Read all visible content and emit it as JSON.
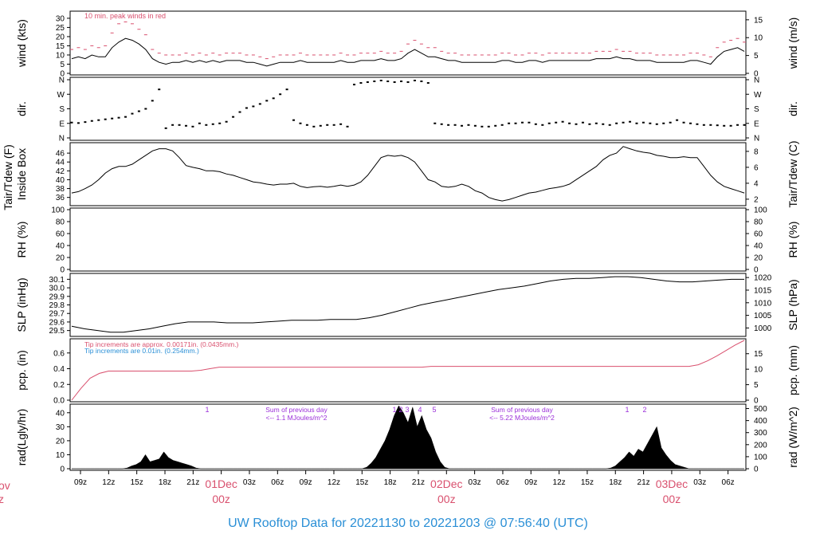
{
  "footer_title": "UW Rooftop Data for 20221130  to  20221203 @ 07:56:40  (UTC)",
  "colors": {
    "frame": "#000000",
    "trace": "#000000",
    "peak": "#d9506e",
    "note_red": "#d9506e",
    "note_blue": "#2a8fd6",
    "note_purple": "#9b30d9",
    "day_label": "#d9506e",
    "title_blue": "#2a8fd6"
  },
  "chart_data": {
    "type": "line",
    "time_axis": {
      "tick_labels": [
        "09z",
        "12z",
        "15z",
        "18z",
        "21z",
        "01Dec",
        "03z",
        "06z",
        "09z",
        "12z",
        "15z",
        "18z",
        "21z",
        "02Dec",
        "03z",
        "06z",
        "09z",
        "12z",
        "15z",
        "18z",
        "21z",
        "03Dec",
        "03z",
        "06z"
      ],
      "day_labels": [
        {
          "date": "01Dec",
          "hour": "00z"
        },
        {
          "date": "02Dec",
          "hour": "00z"
        },
        {
          "date": "03Dec",
          "hour": "00z"
        }
      ],
      "cut_left_labels": [
        "ov",
        "z"
      ]
    },
    "panels": [
      {
        "id": "wind",
        "ylabel_left": "wind (kts)",
        "ylabel_right": "wind (m/s)",
        "ylim": [
          0,
          33
        ],
        "left_ticks": [
          "0",
          "5",
          "10",
          "15",
          "20",
          "25",
          "30"
        ],
        "right_ticks": [
          "0",
          "5",
          "10",
          "15"
        ],
        "note": "10 min. peak winds in red",
        "series": [
          {
            "name": "wind",
            "values": [
              8,
              9,
              8,
              10,
              9,
              9,
              14,
              17,
              19,
              18,
              16,
              13,
              8,
              6,
              5,
              6,
              6,
              7,
              6,
              7,
              6,
              7,
              6,
              7,
              7,
              7,
              6,
              6,
              5,
              4,
              5,
              6,
              6,
              6,
              7,
              6,
              6,
              6,
              6,
              6,
              7,
              6,
              6,
              7,
              7,
              7,
              8,
              7,
              7,
              8,
              11,
              13,
              11,
              9,
              9,
              8,
              7,
              7,
              6,
              6,
              6,
              6,
              6,
              6,
              7,
              7,
              6,
              6,
              7,
              7,
              6,
              7,
              7,
              7,
              7,
              7,
              7,
              7,
              8,
              8,
              8,
              9,
              8,
              8,
              7,
              7,
              7,
              6,
              6,
              6,
              6,
              6,
              7,
              7,
              6,
              5,
              9,
              12,
              13,
              14,
              12
            ]
          },
          {
            "name": "peak",
            "values": [
              13,
              14,
              13,
              15,
              14,
              15,
              22,
              27,
              28,
              27,
              24,
              21,
              13,
              11,
              10,
              10,
              10,
              11,
              10,
              11,
              10,
              11,
              10,
              11,
              11,
              11,
              10,
              10,
              9,
              8,
              9,
              10,
              10,
              10,
              11,
              10,
              10,
              10,
              10,
              10,
              11,
              10,
              10,
              11,
              11,
              11,
              12,
              11,
              11,
              12,
              16,
              18,
              16,
              14,
              14,
              12,
              11,
              11,
              10,
              10,
              10,
              10,
              10,
              10,
              11,
              11,
              10,
              10,
              11,
              11,
              10,
              11,
              11,
              11,
              11,
              11,
              11,
              11,
              12,
              12,
              12,
              13,
              12,
              12,
              11,
              11,
              11,
              10,
              10,
              10,
              10,
              10,
              11,
              11,
              10,
              9,
              14,
              17,
              18,
              19,
              17
            ]
          }
        ]
      },
      {
        "id": "dir",
        "ylabel_left": "dir.",
        "ylabel_right": "dir.",
        "ylim": [
          0,
          360
        ],
        "left_ticks": [
          "N",
          "E",
          "S",
          "W",
          "N"
        ],
        "right_ticks": [
          "N",
          "E",
          "S",
          "W",
          "N"
        ],
        "series": [
          {
            "name": "direction",
            "values": [
              95,
              92,
              98,
              105,
              110,
              115,
              120,
              125,
              130,
              150,
              165,
              180,
              230,
              300,
              60,
              80,
              80,
              75,
              70,
              90,
              80,
              85,
              90,
              100,
              130,
              160,
              185,
              195,
              210,
              230,
              245,
              270,
              300,
              110,
              90,
              80,
              70,
              75,
              80,
              80,
              85,
              70,
              330,
              340,
              345,
              350,
              355,
              350,
              345,
              350,
              345,
              355,
              350,
              340,
              90,
              85,
              80,
              80,
              75,
              80,
              75,
              70,
              70,
              75,
              80,
              90,
              90,
              95,
              95,
              85,
              80,
              90,
              95,
              100,
              90,
              85,
              95,
              85,
              90,
              85,
              80,
              90,
              95,
              100,
              90,
              95,
              90,
              85,
              90,
              95,
              110,
              95,
              90,
              85,
              80,
              80,
              78,
              75,
              75,
              80,
              80
            ]
          }
        ]
      },
      {
        "id": "temp",
        "ylabel_left": "Tair/Tdew (F)",
        "ylabel_left2": "Inside Box",
        "ylabel_right": "Tair/Tdew (C)",
        "ylim": [
          34.5,
          48
        ],
        "left_ticks": [
          "36",
          "38",
          "40",
          "42",
          "44",
          "46"
        ],
        "right_ticks": [
          "2",
          "4",
          "6",
          "8"
        ],
        "series": [
          {
            "name": "tair",
            "values": [
              37,
              37.3,
              38,
              38.8,
              40,
              41.5,
              42.5,
              43,
              43,
              43.5,
              44.5,
              45.5,
              46.5,
              47,
              47,
              46.5,
              45,
              43.2,
              42.8,
              42.5,
              42,
              42,
              41.8,
              41.3,
              41,
              40.5,
              40,
              39.5,
              39.3,
              39,
              38.8,
              39,
              39,
              39.2,
              38.5,
              38.2,
              38.4,
              38.5,
              38.3,
              38.5,
              38.8,
              38.5,
              38.8,
              39.5,
              41,
              43,
              45,
              45.5,
              45.3,
              45.5,
              45,
              44,
              42,
              40,
              39.5,
              38.5,
              38.3,
              38.5,
              39,
              38.5,
              37.5,
              37,
              36,
              35.5,
              35.2,
              35.5,
              36,
              36.5,
              37,
              37.2,
              37.6,
              38,
              38.2,
              38.5,
              39,
              40,
              41,
              42,
              43,
              44.5,
              45.5,
              46,
              47.5,
              47,
              46.5,
              46.2,
              46,
              45.5,
              45.3,
              45,
              45,
              45.2,
              45,
              45,
              43,
              41,
              39.5,
              38.5,
              38,
              37.5,
              37
            ]
          }
        ]
      },
      {
        "id": "rh",
        "ylabel_left": "RH (%)",
        "ylabel_right": "RH (%)",
        "ylim": [
          0,
          100
        ],
        "left_ticks": [
          "0",
          "20",
          "40",
          "60",
          "80",
          "100"
        ],
        "right_ticks": [
          "0",
          "20",
          "40",
          "60",
          "80",
          "100"
        ],
        "series": []
      },
      {
        "id": "slp",
        "ylabel_left": "SLP (inHg)",
        "ylabel_right": "SLP (hPa)",
        "ylim": [
          29.45,
          30.15
        ],
        "left_ticks": [
          "29.5",
          "29.6",
          "29.7",
          "29.8",
          "29.9",
          "30.0",
          "30.1"
        ],
        "right_ticks": [
          "1000",
          "1005",
          "1010",
          "1015",
          "1020"
        ],
        "series": [
          {
            "name": "slp",
            "values": [
              29.55,
              29.52,
              29.5,
              29.48,
              29.48,
              29.5,
              29.52,
              29.55,
              29.58,
              29.6,
              29.6,
              29.6,
              29.59,
              29.59,
              29.59,
              29.6,
              29.61,
              29.62,
              29.62,
              29.62,
              29.63,
              29.63,
              29.63,
              29.65,
              29.68,
              29.72,
              29.76,
              29.8,
              29.83,
              29.86,
              29.89,
              29.92,
              29.95,
              29.98,
              30.0,
              30.02,
              30.05,
              30.08,
              30.1,
              30.11,
              30.11,
              30.12,
              30.13,
              30.13,
              30.12,
              30.1,
              30.08,
              30.07,
              30.07,
              30.08,
              30.09,
              30.1,
              30.1
            ]
          }
        ]
      },
      {
        "id": "pcp",
        "ylabel_left": "pcp. (in)",
        "ylabel_right": "pcp. (mm)",
        "ylim": [
          0,
          0.76
        ],
        "left_ticks": [
          "0.0",
          "0.2",
          "0.4",
          "0.6"
        ],
        "right_ticks": [
          "0",
          "5",
          "10",
          "15"
        ],
        "notes": [
          {
            "text": "Tip increments are approx. 0.00171in. (0.0435mm.)",
            "color": "red"
          },
          {
            "text": "Tip increments are 0.01in.  (0.254mm.)",
            "color": "blue"
          }
        ],
        "series": [
          {
            "name": "pcp",
            "values": [
              0,
              0.15,
              0.28,
              0.34,
              0.37,
              0.37,
              0.37,
              0.37,
              0.37,
              0.37,
              0.37,
              0.37,
              0.37,
              0.37,
              0.38,
              0.4,
              0.42,
              0.42,
              0.42,
              0.42,
              0.42,
              0.42,
              0.42,
              0.42,
              0.42,
              0.42,
              0.42,
              0.42,
              0.42,
              0.42,
              0.42,
              0.42,
              0.42,
              0.42,
              0.42,
              0.42,
              0.42,
              0.42,
              0.42,
              0.43,
              0.43,
              0.43,
              0.43,
              0.43,
              0.43,
              0.43,
              0.43,
              0.43,
              0.43,
              0.43,
              0.43,
              0.43,
              0.43,
              0.43,
              0.43,
              0.43,
              0.43,
              0.43,
              0.43,
              0.43,
              0.43,
              0.43,
              0.43,
              0.43,
              0.43,
              0.43,
              0.43,
              0.43,
              0.45,
              0.5,
              0.56,
              0.63,
              0.7,
              0.76
            ]
          }
        ]
      },
      {
        "id": "rad",
        "ylabel_left": "rad(Lgly/hr)",
        "ylabel_right": "rad (W/m^2)",
        "ylim": [
          0,
          45
        ],
        "left_ticks": [
          "0",
          "10",
          "20",
          "30",
          "40"
        ],
        "right_ticks": [
          "0",
          "100",
          "200",
          "300",
          "400",
          "500"
        ],
        "day_notes": [
          {
            "line1": "Sum of previous day",
            "line2": "<-- 1.1 MJoules/m^2"
          },
          {
            "line1": "Sum of previous day",
            "line2": "<-- 5.22 MJoules/m^2"
          }
        ],
        "markers": [
          "1",
          "1",
          "2",
          "3",
          "4",
          "5",
          "1",
          "2"
        ],
        "series": [
          {
            "name": "rad",
            "values": [
              0,
              0,
              0,
              0,
              0,
              0,
              0,
              0,
              0,
              0,
              0,
              0,
              0.5,
              2,
              3,
              5,
              10,
              5,
              6,
              7,
              12,
              8,
              6,
              5,
              4,
              3,
              2,
              0.5,
              0,
              0,
              0,
              0,
              0,
              0,
              0,
              0,
              0,
              0,
              0,
              0,
              0,
              0,
              0,
              0,
              0,
              0,
              0,
              0,
              0,
              0,
              0,
              0,
              0,
              0,
              0,
              0,
              0,
              0,
              0,
              0,
              0,
              0,
              0,
              0,
              1,
              4,
              8,
              14,
              20,
              28,
              38,
              45,
              40,
              33,
              44,
              30,
              38,
              28,
              22,
              12,
              5,
              1,
              0,
              0,
              0,
              0,
              0,
              0,
              0,
              0,
              0,
              0,
              0,
              0,
              0,
              0,
              0,
              0,
              0,
              0,
              0,
              0,
              0,
              0,
              0,
              0,
              0,
              0,
              0,
              0,
              0,
              0,
              0,
              0,
              0,
              0,
              0,
              0.5,
              2,
              5,
              8,
              12,
              9,
              14,
              12,
              18,
              24,
              30,
              15,
              10,
              6,
              3,
              2,
              1,
              0,
              0,
              0,
              0,
              0,
              0,
              0,
              0,
              0,
              0,
              0,
              0,
              0
            ]
          }
        ]
      }
    ]
  }
}
